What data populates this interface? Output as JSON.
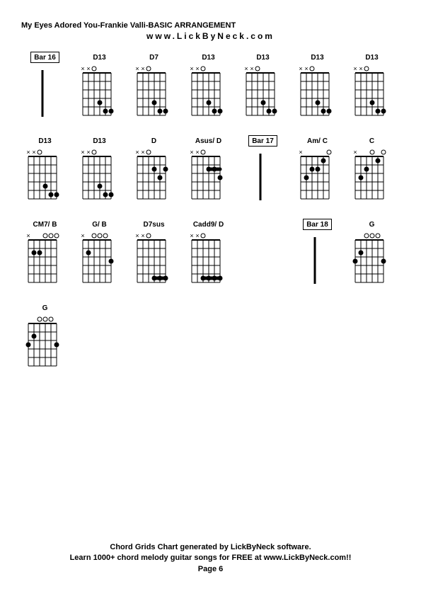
{
  "title": "My Eyes Adored You-Frankie Valli-BASIC ARRANGEMENT",
  "subtitle": "www.LickByNeck.com",
  "footer_line1": "Chord Grids Chart generated by LickByNeck software.",
  "footer_line2": "Learn 1000+ chord melody guitar songs for FREE at www.LickByNeck.com!!",
  "footer_line3": "Page 6",
  "diagram": {
    "strings": 6,
    "frets": 5,
    "grid_color": "#000000",
    "bg_color": "#ffffff",
    "dot_color": "#000000",
    "open_color": "#000000",
    "label_fontsize": 10,
    "marker_fontsize": 9
  },
  "chords": [
    {
      "label": "Bar 16",
      "boxed": true,
      "type": "bar-marker",
      "markers": [],
      "dots": []
    },
    {
      "label": "D13",
      "boxed": false,
      "markers": [
        "x",
        "x",
        "o",
        "",
        "",
        ""
      ],
      "dots": [
        [
          4,
          4
        ],
        [
          5,
          5
        ],
        [
          6,
          5
        ]
      ],
      "barre": null
    },
    {
      "label": "D7",
      "boxed": false,
      "markers": [
        "x",
        "x",
        "o",
        "",
        "",
        ""
      ],
      "dots": [
        [
          4,
          4
        ],
        [
          5,
          5
        ],
        [
          6,
          5
        ]
      ],
      "barre": null
    },
    {
      "label": "D13",
      "boxed": false,
      "markers": [
        "x",
        "x",
        "o",
        "",
        "",
        ""
      ],
      "dots": [
        [
          4,
          4
        ],
        [
          5,
          5
        ],
        [
          6,
          5
        ]
      ],
      "barre": null
    },
    {
      "label": "D13",
      "boxed": false,
      "markers": [
        "x",
        "x",
        "o",
        "",
        "",
        ""
      ],
      "dots": [
        [
          4,
          4
        ],
        [
          5,
          5
        ],
        [
          6,
          5
        ]
      ],
      "barre": null
    },
    {
      "label": "D13",
      "boxed": false,
      "markers": [
        "x",
        "x",
        "o",
        "",
        "",
        ""
      ],
      "dots": [
        [
          4,
          4
        ],
        [
          5,
          5
        ],
        [
          6,
          5
        ]
      ],
      "barre": null
    },
    {
      "label": "D13",
      "boxed": false,
      "markers": [
        "x",
        "x",
        "o",
        "",
        "",
        ""
      ],
      "dots": [
        [
          4,
          4
        ],
        [
          5,
          5
        ],
        [
          6,
          5
        ]
      ],
      "barre": null
    },
    {
      "label": "D13",
      "boxed": false,
      "markers": [
        "x",
        "x",
        "o",
        "",
        "",
        ""
      ],
      "dots": [
        [
          4,
          4
        ],
        [
          5,
          5
        ],
        [
          6,
          5
        ]
      ],
      "barre": null
    },
    {
      "label": "D13",
      "boxed": false,
      "markers": [
        "x",
        "x",
        "o",
        "",
        "",
        ""
      ],
      "dots": [
        [
          4,
          4
        ],
        [
          5,
          5
        ],
        [
          6,
          5
        ]
      ],
      "barre": null
    },
    {
      "label": "D",
      "boxed": false,
      "markers": [
        "x",
        "x",
        "o",
        "",
        "",
        ""
      ],
      "dots": [
        [
          4,
          2
        ],
        [
          5,
          3
        ],
        [
          6,
          2
        ]
      ],
      "barre": null
    },
    {
      "label": "Asus/ D",
      "boxed": false,
      "markers": [
        "x",
        "x",
        "o",
        "",
        "",
        ""
      ],
      "dots": [
        [
          4,
          2
        ],
        [
          5,
          2
        ],
        [
          6,
          3
        ]
      ],
      "barre": [
        4,
        6,
        2
      ]
    },
    {
      "label": "Bar 17",
      "boxed": true,
      "type": "bar-marker",
      "markers": [],
      "dots": []
    },
    {
      "label": "Am/ C",
      "boxed": false,
      "markers": [
        "x",
        "",
        "",
        "",
        "",
        "o"
      ],
      "dots": [
        [
          2,
          3
        ],
        [
          3,
          2
        ],
        [
          4,
          2
        ],
        [
          5,
          1
        ]
      ],
      "barre": null
    },
    {
      "label": "C",
      "boxed": false,
      "markers": [
        "x",
        "",
        "",
        "o",
        "",
        "o"
      ],
      "dots": [
        [
          2,
          3
        ],
        [
          3,
          2
        ],
        [
          5,
          1
        ]
      ],
      "barre": null
    },
    {
      "label": "CM7/ B",
      "boxed": false,
      "markers": [
        "x",
        "",
        "",
        "o",
        "o",
        "o"
      ],
      "dots": [
        [
          2,
          2
        ],
        [
          3,
          2
        ]
      ],
      "barre": null
    },
    {
      "label": "G/ B",
      "boxed": false,
      "markers": [
        "x",
        "",
        "o",
        "o",
        "o",
        ""
      ],
      "dots": [
        [
          2,
          2
        ],
        [
          6,
          3
        ]
      ],
      "barre": null
    },
    {
      "label": "D7sus",
      "boxed": false,
      "markers": [
        "x",
        "x",
        "o",
        "",
        "",
        ""
      ],
      "dots": [
        [
          4,
          5
        ],
        [
          5,
          5
        ],
        [
          6,
          5
        ]
      ],
      "barre": [
        4,
        6,
        5
      ]
    },
    {
      "label": "Cadd9/ D",
      "boxed": false,
      "markers": [
        "x",
        "x",
        "o",
        "",
        "",
        ""
      ],
      "dots": [
        [
          4,
          5
        ],
        [
          5,
          5
        ],
        [
          6,
          5
        ],
        [
          3,
          5
        ]
      ],
      "barre": [
        3,
        6,
        5
      ]
    },
    {
      "label": "",
      "boxed": false,
      "type": "blank",
      "markers": [],
      "dots": []
    },
    {
      "label": "Bar 18",
      "boxed": true,
      "type": "bar-marker",
      "markers": [],
      "dots": []
    },
    {
      "label": "G",
      "boxed": false,
      "markers": [
        "",
        "",
        "o",
        "o",
        "o",
        ""
      ],
      "dots": [
        [
          1,
          3
        ],
        [
          2,
          2
        ],
        [
          6,
          3
        ]
      ],
      "barre": null
    },
    {
      "label": "G",
      "boxed": false,
      "markers": [
        "",
        "",
        "o",
        "o",
        "o",
        ""
      ],
      "dots": [
        [
          1,
          3
        ],
        [
          2,
          2
        ],
        [
          6,
          3
        ]
      ],
      "barre": null
    }
  ]
}
